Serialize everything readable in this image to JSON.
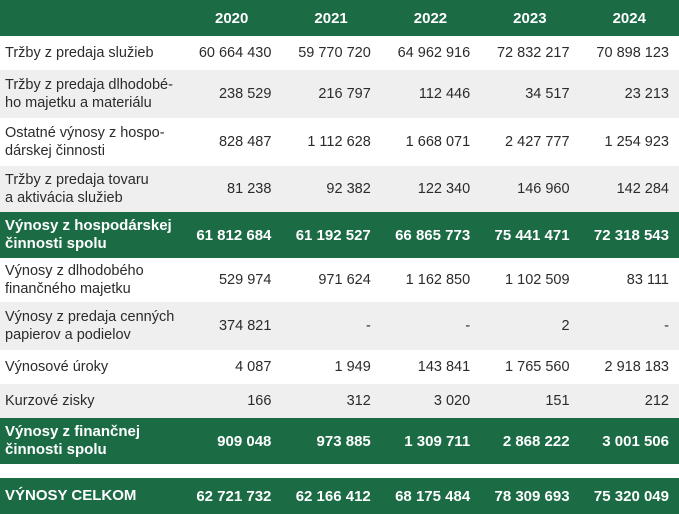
{
  "header": {
    "columns": [
      "2020",
      "2021",
      "2022",
      "2023",
      "2024"
    ]
  },
  "table": {
    "rows": [
      [
        "Tržby z predaja služieb",
        "60 664 430",
        "59 770 720",
        "64 962 916",
        "72 832 217",
        "70 898 123"
      ],
      [
        "Tržby z predaja dlhodobé-\nho majetku a materiálu",
        "238 529",
        "216 797",
        "112 446",
        "34 517",
        "23 213"
      ],
      [
        "Ostatné výnosy z hospo-\ndárskej činnosti",
        "828 487",
        "1 112 628",
        "1 668 071",
        "2 427 777",
        "1 254 923"
      ],
      [
        "Tržby z predaja tovaru\na aktivácia služieb",
        "81 238",
        "92 382",
        "122 340",
        "146 960",
        "142 284"
      ],
      [
        "Výnosy z hospodárskej\nčinnosti spolu",
        "61 812 684",
        "61 192 527",
        "66 865 773",
        "75 441 471",
        "72 318 543"
      ],
      [
        "Výnosy z dlhodobého\nfinančného majetku",
        "529 974",
        "971 624",
        "1 162 850",
        "1 102 509",
        "83 111"
      ],
      [
        "Výnosy z predaja cenných\npapierov a podielov",
        "374 821",
        "-",
        "-",
        "2",
        "-"
      ],
      [
        "Výnosové úroky",
        "4 087",
        "1 949",
        "143 841",
        "1 765 560",
        "2 918 183"
      ],
      [
        "Kurzové zisky",
        "166",
        "312",
        "3 020",
        "151",
        "212"
      ],
      [
        "Výnosy z finančnej\nčinnosti spolu",
        "909 048",
        "973 885",
        "1 309 711",
        "2 868 222",
        "3 001 506"
      ],
      [
        "VÝNOSY CELKOM",
        "62 721 732",
        "62 166 412",
        "68 175 484",
        "78 309 693",
        "75 320 049"
      ]
    ]
  }
}
